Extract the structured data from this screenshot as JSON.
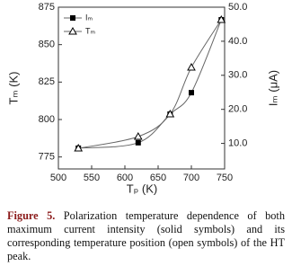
{
  "chart_data": {
    "type": "line",
    "xlabel": "Tₚ (K)",
    "ylabel": "Tₘ (K)",
    "y2label": "Iₘ (μA)",
    "x": [
      530,
      620,
      668,
      700,
      745
    ],
    "series": [
      {
        "name": "Iₘ",
        "color": "#000000",
        "marker": "square",
        "axis": "y2",
        "values": [
          8.6,
          10.2,
          18.6,
          24.9,
          46.3
        ]
      },
      {
        "name": "Tₘ",
        "color": "#000000",
        "marker": "triangle",
        "values": [
          780.8,
          788.6,
          803.6,
          834.8,
          866.6
        ]
      }
    ],
    "xlim": [
      500,
      750
    ],
    "xticks": [
      500,
      550,
      600,
      650,
      700,
      750
    ],
    "ylim": [
      767,
      875
    ],
    "yticks": [
      775,
      800,
      825,
      850,
      875
    ],
    "y2lim": [
      2.5,
      50
    ],
    "y2ticks": [
      {
        "value": 10,
        "label": "10.0"
      },
      {
        "value": 20,
        "label": "20.0"
      },
      {
        "value": 30,
        "label": "30.0"
      },
      {
        "value": 40,
        "label": "40.0"
      },
      {
        "value": 50,
        "label": "50.0"
      }
    ],
    "legend": "upper left"
  },
  "caption": {
    "label": "Figure 5.",
    "text": "Polarization temperature dependence of both maximum current intensity (solid symbols) and its corresponding temperature position (open symbols) of the HT peak."
  }
}
